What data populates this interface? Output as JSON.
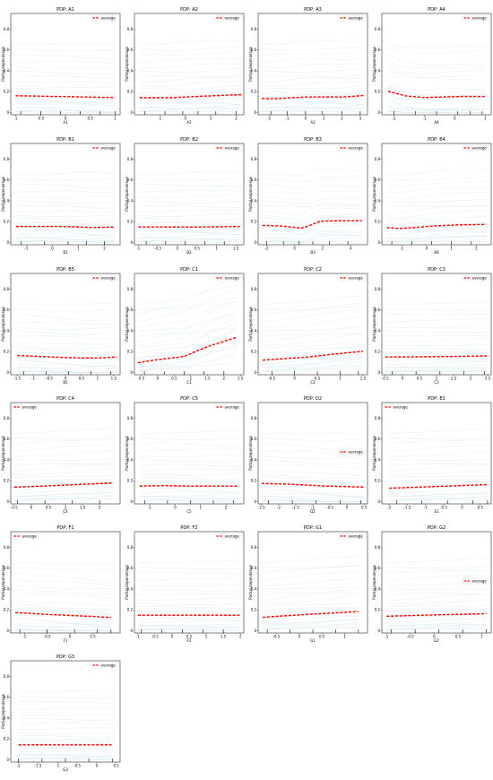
{
  "common": {
    "ylabel": "Partial dependence",
    "legend_label": "average",
    "yticks": [
      0.0,
      0.2,
      0.4,
      0.6,
      0.8
    ],
    "ylim": [
      -0.02,
      0.95
    ],
    "colors": {
      "average": "#ff0000",
      "ice": "#a6cde1",
      "axis": "#000000"
    }
  },
  "chart_data": [
    {
      "type": "line",
      "title": "PDP: A1",
      "xlabel": "A1",
      "xlim": [
        -1.1,
        1.1
      ],
      "xticks": [
        -1.0,
        -0.5,
        0.0,
        0.5,
        1.0
      ],
      "x": [
        -1.0,
        -0.5,
        0.0,
        0.5,
        1.0
      ],
      "values": [
        0.162,
        0.158,
        0.154,
        0.149,
        0.145
      ],
      "rug": [
        -0.9,
        -0.5,
        -0.1,
        0.3,
        0.7,
        1.0
      ],
      "legend": "top-right"
    },
    {
      "type": "line",
      "title": "PDP: A2",
      "xlabel": "A2",
      "xlim": [
        -2.0,
        2.3
      ],
      "xticks": [
        -1,
        0,
        1,
        2
      ],
      "x": [
        -1.8,
        -1.2,
        -0.6,
        0.0,
        0.6,
        1.2,
        1.8,
        2.2
      ],
      "values": [
        0.143,
        0.143,
        0.143,
        0.15,
        0.157,
        0.163,
        0.169,
        0.172
      ],
      "rug": [
        -1.6,
        -0.8,
        -0.1,
        0.5,
        1.2,
        2.0
      ],
      "legend": "top-right"
    },
    {
      "type": "line",
      "title": "PDP: A3",
      "xlabel": "A3",
      "xlim": [
        -2.6,
        3.4
      ],
      "xticks": [
        -2,
        -1,
        0,
        1,
        2,
        3
      ],
      "x": [
        -2.4,
        -1.5,
        -0.6,
        0.0,
        1.0,
        2.0,
        2.5,
        3.2
      ],
      "values": [
        0.135,
        0.135,
        0.145,
        0.15,
        0.15,
        0.15,
        0.155,
        0.165
      ],
      "rug": [
        -1.9,
        -1.0,
        0.0,
        0.9,
        2.0,
        3.0
      ],
      "legend": "top-right"
    },
    {
      "type": "line",
      "title": "PDP: A4",
      "xlabel": "A4",
      "xlim": [
        -2.4,
        1.2
      ],
      "xticks": [
        -2,
        -1,
        0,
        1
      ],
      "x": [
        -2.2,
        -1.6,
        -1.0,
        -0.4,
        0.2,
        1.0
      ],
      "values": [
        0.205,
        0.16,
        0.145,
        0.15,
        0.155,
        0.155
      ],
      "rug": [
        -2.0,
        -1.3,
        -0.6,
        0.1,
        0.5,
        0.9
      ],
      "legend": "top-right"
    },
    {
      "type": "line",
      "title": "PDP: B1",
      "xlabel": "B1",
      "xlim": [
        -1.6,
        2.6
      ],
      "xticks": [
        -1,
        0,
        1,
        2
      ],
      "x": [
        -1.4,
        -0.5,
        0.4,
        1.0,
        1.5,
        2.4
      ],
      "values": [
        0.155,
        0.155,
        0.155,
        0.15,
        0.145,
        0.15
      ],
      "rug": [
        -1.2,
        -0.3,
        0.6,
        1.3,
        2.0
      ],
      "legend": "top-right"
    },
    {
      "type": "line",
      "title": "PDP: B2",
      "xlabel": "B2",
      "xlim": [
        -1.1,
        1.7
      ],
      "xticks": [
        -1.0,
        -0.5,
        0.0,
        0.5,
        1.0,
        1.5
      ],
      "x": [
        -1.0,
        -0.5,
        0.0,
        0.5,
        1.0,
        1.6
      ],
      "values": [
        0.15,
        0.15,
        0.15,
        0.15,
        0.152,
        0.155
      ],
      "rug": [
        -0.8,
        -0.3,
        0.2,
        0.7,
        1.2
      ],
      "legend": "top-right"
    },
    {
      "type": "line",
      "title": "PDP: B3",
      "xlabel": "B3",
      "xlim": [
        -2.6,
        5.2
      ],
      "xticks": [
        -2,
        0,
        2,
        4
      ],
      "x": [
        -2.3,
        -1.0,
        0.5,
        1.0,
        1.8,
        3.0,
        4.8
      ],
      "values": [
        0.165,
        0.16,
        0.14,
        0.16,
        0.205,
        0.21,
        0.21
      ],
      "rug": [
        -2.0,
        -0.8,
        0.3,
        1.3,
        2.5,
        3.8
      ],
      "legend": "top-right"
    },
    {
      "type": "line",
      "title": "PDP: B4",
      "xlabel": "B4",
      "xlim": [
        -1.8,
        2.6
      ],
      "xticks": [
        -1,
        0,
        1,
        2
      ],
      "x": [
        -1.6,
        -1.1,
        -0.5,
        0.3,
        1.2,
        2.4
      ],
      "values": [
        0.145,
        0.135,
        0.145,
        0.16,
        0.17,
        0.175
      ],
      "rug": [
        -1.4,
        -0.6,
        0.2,
        1.0,
        1.8
      ],
      "legend": "top-right"
    },
    {
      "type": "line",
      "title": "PDP: B5",
      "xlabel": "B5",
      "xlim": [
        -1.7,
        1.7
      ],
      "xticks": [
        -1.5,
        -1.0,
        -0.5,
        0.0,
        0.5,
        1.0,
        1.5
      ],
      "x": [
        -1.5,
        -0.8,
        0.0,
        0.5,
        1.0,
        1.6
      ],
      "values": [
        0.165,
        0.155,
        0.145,
        0.14,
        0.14,
        0.15
      ],
      "rug": [
        -1.3,
        -0.6,
        0.1,
        0.8,
        1.4
      ],
      "legend": "top-right"
    },
    {
      "type": "line",
      "title": "PDP: C1",
      "xlabel": "C1",
      "xlim": [
        -0.7,
        2.6
      ],
      "xticks": [
        -0.5,
        0.0,
        0.5,
        1.0,
        1.5,
        2.0,
        2.5
      ],
      "x": [
        -0.6,
        0.0,
        0.8,
        1.2,
        1.6,
        2.0,
        2.4
      ],
      "values": [
        0.095,
        0.125,
        0.155,
        0.21,
        0.26,
        0.3,
        0.34
      ],
      "rug": [
        -0.4,
        0.2,
        0.8,
        1.4,
        2.0
      ],
      "legend": "top-right"
    },
    {
      "type": "line",
      "title": "PDP: C2",
      "xlabel": "C2",
      "xlim": [
        -0.8,
        1.6
      ],
      "xticks": [
        -0.5,
        0.0,
        0.5,
        1.0,
        1.5
      ],
      "x": [
        -0.7,
        -0.2,
        0.3,
        0.8,
        1.5
      ],
      "values": [
        0.12,
        0.135,
        0.15,
        0.175,
        0.205
      ],
      "rug": [
        -0.5,
        0.0,
        0.5,
        1.0,
        1.4
      ],
      "legend": "top-right"
    },
    {
      "type": "line",
      "title": "PDP: C3",
      "xlabel": "C3",
      "xlim": [
        -0.6,
        2.6
      ],
      "xticks": [
        -0.5,
        0.0,
        0.5,
        1.0,
        1.5,
        2.0,
        2.5
      ],
      "x": [
        -0.5,
        0.5,
        1.5,
        2.5
      ],
      "values": [
        0.15,
        0.152,
        0.155,
        0.16
      ],
      "rug": [
        -0.3,
        0.4,
        1.1,
        1.8,
        2.4
      ],
      "legend": "top-right"
    },
    {
      "type": "line",
      "title": "PDP: C4",
      "xlabel": "C4",
      "xlim": [
        -0.6,
        2.6
      ],
      "xticks": [
        -0.5,
        0.0,
        0.5,
        1.0,
        1.5,
        2.0
      ],
      "x": [
        -0.5,
        0.3,
        1.0,
        1.7,
        2.4
      ],
      "values": [
        0.14,
        0.15,
        0.16,
        0.17,
        0.18
      ],
      "rug": [
        -0.4,
        0.4,
        1.2,
        2.0
      ],
      "legend": "top-left"
    },
    {
      "type": "line",
      "title": "PDP: C5",
      "xlabel": "C5",
      "xlim": [
        -1.6,
        2.7
      ],
      "xticks": [
        -1,
        0,
        1,
        2
      ],
      "x": [
        -1.4,
        -0.5,
        0.5,
        1.5,
        2.5
      ],
      "values": [
        0.15,
        0.155,
        0.15,
        0.15,
        0.15
      ],
      "rug": [
        -1.2,
        -0.3,
        0.6,
        1.5,
        2.3
      ],
      "legend": "top-right"
    },
    {
      "type": "line",
      "title": "PDP: D2",
      "xlabel": "D2",
      "xlim": [
        -2.6,
        0.6
      ],
      "xticks": [
        -2.5,
        -2.0,
        -1.5,
        -1.0,
        -0.5,
        0.0,
        0.5
      ],
      "x": [
        -2.5,
        -1.8,
        -1.2,
        -0.6,
        0.0,
        0.5
      ],
      "values": [
        0.175,
        0.17,
        0.16,
        0.15,
        0.145,
        0.14
      ],
      "rug": [
        -2.3,
        -1.6,
        -0.9,
        -0.2,
        0.4
      ],
      "legend": "middle-right"
    },
    {
      "type": "line",
      "title": "PDP: E1",
      "xlabel": "E1",
      "xlim": [
        -2.2,
        0.8
      ],
      "xticks": [
        -2.0,
        -1.5,
        -1.0,
        -0.5,
        0.0,
        0.5
      ],
      "x": [
        -2.0,
        -1.2,
        -0.4,
        0.4,
        0.7
      ],
      "values": [
        0.13,
        0.14,
        0.15,
        0.16,
        0.165
      ],
      "rug": [
        -1.8,
        -1.1,
        -0.4,
        0.3,
        0.7
      ],
      "legend": "top-left"
    },
    {
      "type": "line",
      "title": "PDP: F1",
      "xlabel": "F1",
      "xlim": [
        -1.3,
        1.1
      ],
      "xticks": [
        -1.0,
        -0.5,
        0.0,
        0.5
      ],
      "x": [
        -1.2,
        -0.6,
        0.0,
        0.5,
        0.9
      ],
      "values": [
        0.175,
        0.16,
        0.148,
        0.138,
        0.128
      ],
      "rug": [
        -1.1,
        -0.5,
        0.1,
        0.6,
        0.9
      ],
      "legend": "top-left"
    },
    {
      "type": "line",
      "title": "PDP: F2",
      "xlabel": "F2",
      "xlim": [
        -1.1,
        2.1
      ],
      "xticks": [
        -1.0,
        -0.5,
        0.0,
        0.5,
        1.0,
        1.5,
        2.0
      ],
      "x": [
        -1.0,
        0.0,
        1.0,
        2.0
      ],
      "values": [
        0.15,
        0.15,
        0.15,
        0.15
      ],
      "rug": [
        -0.9,
        -0.3,
        0.3,
        0.9,
        1.5
      ],
      "legend": "top-right"
    },
    {
      "type": "line",
      "title": "PDP: G1",
      "xlabel": "G1",
      "xlim": [
        -0.9,
        1.5
      ],
      "xticks": [
        -0.5,
        0.0,
        0.5,
        1.0
      ],
      "x": [
        -0.8,
        -0.3,
        0.2,
        0.7,
        1.3
      ],
      "values": [
        0.13,
        0.145,
        0.158,
        0.17,
        0.185
      ],
      "rug": [
        -0.7,
        -0.2,
        0.3,
        0.8,
        1.3
      ],
      "legend": "top-right"
    },
    {
      "type": "line",
      "title": "PDP: G2",
      "xlabel": "G2",
      "xlim": [
        -1.1,
        1.2
      ],
      "xticks": [
        -1.0,
        -0.5,
        0.0,
        0.5,
        1.0
      ],
      "x": [
        -1.0,
        -0.4,
        0.2,
        0.7,
        1.1
      ],
      "values": [
        0.14,
        0.148,
        0.155,
        0.16,
        0.165
      ],
      "rug": [
        -0.9,
        -0.4,
        0.1,
        0.6,
        1.1
      ],
      "legend": "middle-right"
    },
    {
      "type": "line",
      "title": "PDP: G3",
      "xlabel": "G3",
      "xlim": [
        -2.2,
        0.6
      ],
      "xticks": [
        -2.0,
        -1.5,
        -1.0,
        -0.5,
        0.0,
        0.5
      ],
      "x": [
        -2.0,
        -1.2,
        -0.4,
        0.4
      ],
      "values": [
        0.145,
        0.145,
        0.145,
        0.145
      ],
      "rug": [
        -2.0,
        -1.4,
        -0.8,
        -0.2,
        0.4
      ],
      "legend": "top-right"
    }
  ]
}
